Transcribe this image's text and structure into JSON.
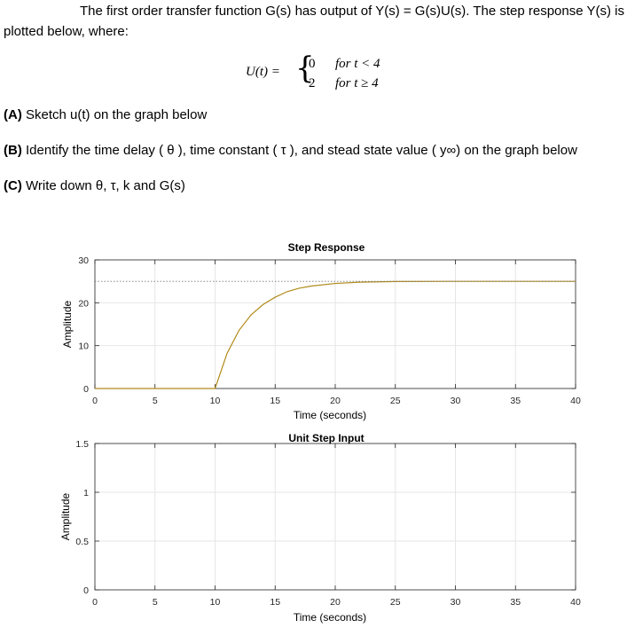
{
  "problem": {
    "line1": "The first order transfer function G(s) has output of Y(s) = G(s)U(s).  The step response Y(s) is",
    "line2": "plotted below, where:",
    "eq_lhs": "U(t) =",
    "case1_val": "0",
    "case1_cond": "for t < 4",
    "case2_val": "2",
    "case2_cond": "for t ≥ 4",
    "partA_label": "(A)",
    "partA_text": "Sketch u(t) on the graph below",
    "partB_label": "(B)",
    "partB_text": "Identify the time delay ( θ ), time constant ( τ ), and stead state value ( y∞) on the graph below",
    "partC_label": "(C)",
    "partC_text": "Write down θ, τ, k and G(s)"
  },
  "chart_data": [
    {
      "type": "line",
      "title": "Step Response",
      "xlabel": "Time (seconds)",
      "ylabel": "Amplitude",
      "xlim": [
        0,
        40
      ],
      "ylim": [
        0,
        30
      ],
      "xticks": [
        0,
        5,
        10,
        15,
        20,
        25,
        30,
        35,
        40
      ],
      "yticks": [
        0,
        10,
        20,
        30
      ],
      "grid": true,
      "colors": {
        "line": "#b08a1a",
        "steady": "#777777"
      },
      "series": [
        {
          "x": [
            0,
            10,
            11,
            12,
            13,
            14,
            15,
            16,
            17,
            18,
            20,
            22,
            25,
            30,
            40
          ],
          "y": [
            0,
            0,
            8.2,
            13.6,
            17.2,
            19.6,
            21.3,
            22.6,
            23.4,
            23.9,
            24.5,
            24.8,
            24.95,
            25,
            25
          ]
        },
        {
          "x": [
            0,
            40
          ],
          "y": [
            25,
            25
          ]
        }
      ]
    },
    {
      "type": "line",
      "title": "Unit Step Input",
      "xlabel": "Time (seconds)",
      "ylabel": "Amplitude",
      "xlim": [
        0,
        40
      ],
      "ylim": [
        0,
        1.5
      ],
      "xticks": [
        0,
        5,
        10,
        15,
        20,
        25,
        30,
        35,
        40
      ],
      "yticks": [
        0,
        0.5,
        1,
        1.5
      ],
      "grid": true,
      "series": []
    }
  ]
}
